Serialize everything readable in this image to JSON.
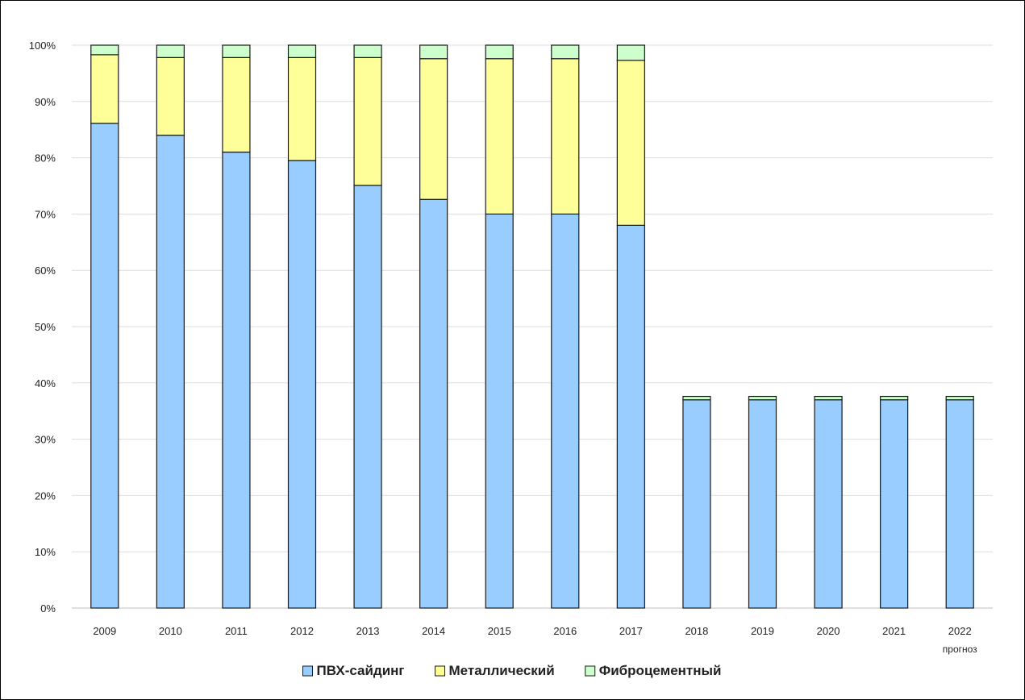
{
  "chart_data": {
    "type": "bar",
    "stacked": true,
    "title": "",
    "xlabel": "",
    "ylabel": "",
    "ylim": [
      0,
      100
    ],
    "y_tick_labels": [
      "0%",
      "10%",
      "20%",
      "30%",
      "40%",
      "50%",
      "60%",
      "70%",
      "80%",
      "90%",
      "100%"
    ],
    "grid": true,
    "legend_position": "bottom",
    "categories": [
      "2009",
      "2010",
      "2011",
      "2012",
      "2013",
      "2014",
      "2015",
      "2016",
      "2017",
      "2018",
      "2019",
      "2020",
      "2021",
      "2022"
    ],
    "category_notes": [
      {
        "category": "2022",
        "text": "прогноз"
      }
    ],
    "series": [
      {
        "name": "ПВХ-сайдинг",
        "color": "#99ccff",
        "values": [
          86.1,
          84.0,
          81.0,
          79.5,
          75.1,
          72.6,
          70.0,
          70.0,
          68.0,
          37.0,
          37.0,
          37.0,
          37.0,
          37.0
        ]
      },
      {
        "name": "Металлический",
        "color": "#ffff99",
        "values": [
          12.2,
          13.8,
          16.8,
          18.3,
          22.7,
          25.0,
          27.6,
          27.6,
          29.3,
          0,
          0,
          0,
          0,
          0
        ]
      },
      {
        "name": "Фиброцементный",
        "color": "#ccffcc",
        "values": [
          1.7,
          2.2,
          2.2,
          2.2,
          2.2,
          2.4,
          2.4,
          2.4,
          2.7,
          0.6,
          0.6,
          0.6,
          0.6,
          0.6
        ]
      }
    ]
  }
}
